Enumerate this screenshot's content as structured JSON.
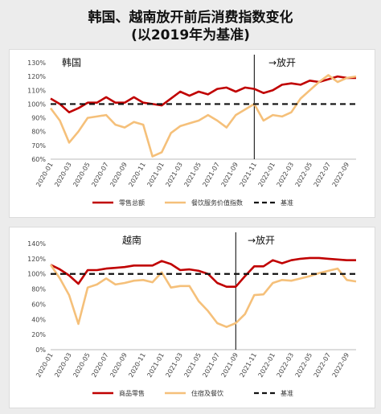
{
  "title_line1": "韩国、越南放开前后消费指数变化",
  "title_line2": "(以2019年为基准)",
  "x_labels": [
    "2020-01",
    "2020-03",
    "2020-05",
    "2020-07",
    "2020-09",
    "2020-11",
    "2021-01",
    "2021-03",
    "2021-05",
    "2021-07",
    "2021-09",
    "2021-11",
    "2022-01",
    "2022-03",
    "2022-05",
    "2022-07",
    "2022-09"
  ],
  "chart_data": [
    {
      "type": "line",
      "country_label": "韩国",
      "reopen_label": "→放开",
      "reopen_index": 22,
      "ylim": [
        60,
        130
      ],
      "ytick_step": 10,
      "yticks": [
        "60%",
        "70%",
        "80%",
        "90%",
        "100%",
        "110%",
        "120%",
        "130%"
      ],
      "series": [
        {
          "name": "零售总额",
          "color": "#c00000",
          "dash": false,
          "values": [
            104,
            100,
            94,
            97,
            101,
            101,
            105,
            101,
            101,
            105,
            101,
            100,
            99,
            104,
            109,
            106,
            109,
            107,
            111,
            112,
            109,
            112,
            111,
            108,
            110,
            114,
            115,
            114,
            117,
            116,
            118,
            120,
            119,
            119
          ]
        },
        {
          "name": "餐饮服务价值指数",
          "color": "#f5c07a",
          "dash": false,
          "values": [
            97,
            88,
            72,
            80,
            90,
            91,
            92,
            85,
            83,
            87,
            85,
            62,
            65,
            79,
            84,
            86,
            88,
            92,
            88,
            83,
            92,
            96,
            100,
            88,
            92,
            91,
            94,
            104,
            110,
            116,
            121,
            116,
            119,
            120
          ]
        },
        {
          "name": "基准",
          "color": "#111111",
          "dash": true,
          "values": [
            100
          ]
        }
      ]
    },
    {
      "type": "line",
      "country_label": "越南",
      "reopen_label": "→放开",
      "reopen_index": 20,
      "ylim": [
        0,
        140
      ],
      "ytick_step": 20,
      "yticks": [
        "0%",
        "20%",
        "40%",
        "60%",
        "80%",
        "100%",
        "120%",
        "140%"
      ],
      "series": [
        {
          "name": "商品零售",
          "color": "#c00000",
          "dash": false,
          "values": [
            112,
            106,
            98,
            87,
            105,
            105,
            107,
            108,
            109,
            111,
            111,
            111,
            117,
            113,
            105,
            106,
            104,
            100,
            88,
            83,
            83,
            97,
            110,
            110,
            118,
            114,
            118,
            120,
            121,
            121,
            120,
            119,
            118,
            118
          ]
        },
        {
          "name": "住宿及餐饮",
          "color": "#f5c07a",
          "dash": false,
          "values": [
            112,
            94,
            72,
            34,
            82,
            86,
            94,
            86,
            88,
            91,
            92,
            89,
            102,
            82,
            84,
            84,
            64,
            51,
            35,
            30,
            35,
            47,
            72,
            73,
            88,
            92,
            91,
            94,
            97,
            101,
            104,
            107,
            92,
            90
          ]
        },
        {
          "name": "基准",
          "color": "#111111",
          "dash": true,
          "values": [
            100
          ]
        }
      ]
    }
  ]
}
